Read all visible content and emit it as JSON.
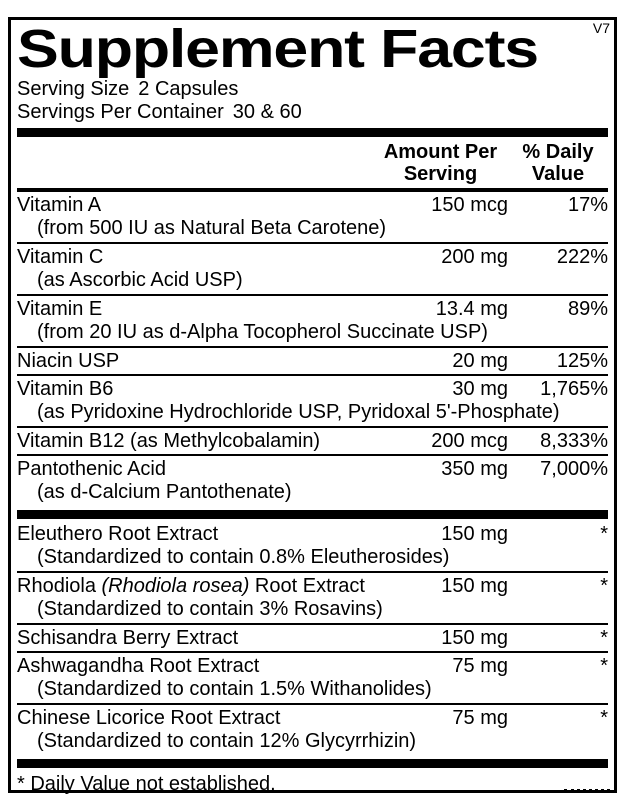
{
  "version_tag": "V7",
  "title": "Supplement Facts",
  "serving": {
    "size_label": "Serving Size",
    "size_value": "2 Capsules",
    "per_container_label": "Servings Per Container",
    "per_container_value": "30 & 60"
  },
  "columns": {
    "amount_line1": "Amount Per",
    "amount_line2": "Serving",
    "dv_line1": "% Daily",
    "dv_line2": "Value"
  },
  "rows": {
    "vitamins": [
      {
        "name": "Vitamin A",
        "amount": "150 mcg",
        "dv": "17%",
        "sub": "(from 500 IU as Natural Beta Carotene)"
      },
      {
        "name": "Vitamin C",
        "amount": "200 mg",
        "dv": "222%",
        "sub": "(as Ascorbic Acid USP)"
      },
      {
        "name": "Vitamin E",
        "amount": "13.4 mg",
        "dv": "89%",
        "sub": "(from 20 IU as d-Alpha Tocopherol Succinate USP)"
      },
      {
        "name": "Niacin USP",
        "amount": "20 mg",
        "dv": "125%"
      },
      {
        "name": "Vitamin B6",
        "amount": "30 mg",
        "dv": "1,765%",
        "sub": "(as Pyridoxine Hydrochloride USP, Pyridoxal 5'-Phosphate)"
      },
      {
        "name": "Vitamin B12 (as Methylcobalamin)",
        "amount": "200 mcg",
        "dv": "8,333%"
      },
      {
        "name": "Pantothenic Acid",
        "amount": "350 mg",
        "dv": "7,000%",
        "sub": "(as d-Calcium Pantothenate)"
      }
    ],
    "botanicals": [
      {
        "name": "Eleuthero Root Extract",
        "amount": "150 mg",
        "dv": "*",
        "sub": "(Standardized to contain 0.8% Eleutherosides)"
      },
      {
        "name_pre": "Rhodiola ",
        "name_italic": "(Rhodiola rosea)",
        "name_post": " Root Extract",
        "amount": "150 mg",
        "dv": "*",
        "sub": "(Standardized to contain 3% Rosavins)"
      },
      {
        "name": "Schisandra Berry Extract",
        "amount": "150 mg",
        "dv": "*"
      },
      {
        "name": "Ashwagandha Root Extract",
        "amount": "75 mg",
        "dv": "*",
        "sub": "(Standardized to contain 1.5% Withanolides)"
      },
      {
        "name": "Chinese Licorice Root Extract",
        "amount": "75 mg",
        "dv": "*",
        "sub": "(Standardized to contain 12% Glycyrrhizin)"
      }
    ]
  },
  "footnote": "* Daily Value not established.",
  "colors": {
    "ink": "#000000",
    "background": "#ffffff"
  }
}
